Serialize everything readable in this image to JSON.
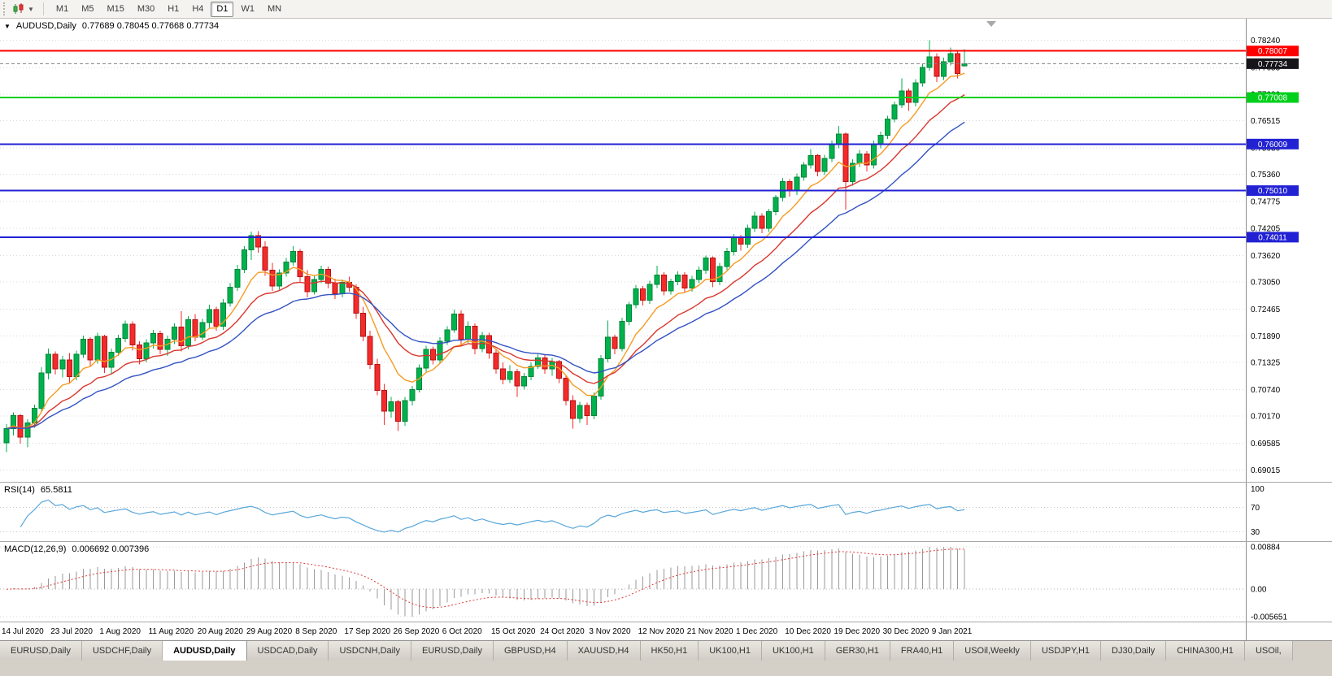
{
  "icons": {
    "dropdown_caret": "▼",
    "symbol_dropdown": "▼",
    "chart_type_icon": "candlestick-chart-icon",
    "shift_marker": "chart-shift-marker-triangle"
  },
  "toolbar": {
    "timeframes": [
      {
        "label": "M1",
        "active": false
      },
      {
        "label": "M5",
        "active": false
      },
      {
        "label": "M15",
        "active": false
      },
      {
        "label": "M30",
        "active": false
      },
      {
        "label": "H1",
        "active": false
      },
      {
        "label": "H4",
        "active": false
      },
      {
        "label": "D1",
        "active": true
      },
      {
        "label": "W1",
        "active": false
      },
      {
        "label": "MN",
        "active": false
      }
    ]
  },
  "chart": {
    "symbol": "AUDUSD,Daily",
    "ohlc_header": "0.77689 0.78045 0.77668 0.77734",
    "price_axis_labels": [
      "0.78240",
      "0.77655",
      "0.77080",
      "0.76515",
      "0.75930",
      "0.75360",
      "0.74775",
      "0.74205",
      "0.73620",
      "0.73050",
      "0.72465",
      "0.71890",
      "0.71325",
      "0.70740",
      "0.70170",
      "0.69585",
      "0.69015"
    ],
    "hlines": [
      {
        "price": 0.78007,
        "label": "0.78007",
        "color": "#ff0000",
        "width": 2
      },
      {
        "price": 0.77008,
        "label": "0.77008",
        "color": "#00d01c",
        "width": 2
      },
      {
        "price": 0.76009,
        "label": "0.76009",
        "color": "#2222d4",
        "width": 2
      },
      {
        "price": 0.7501,
        "label": "0.75010",
        "color": "#2222d4",
        "width": 2
      },
      {
        "price": 0.74011,
        "label": "0.74011",
        "color": "#2222d4",
        "width": 2
      }
    ],
    "current_price": {
      "value": 0.77734,
      "label": "0.77734",
      "badge_color": "#15151a"
    },
    "colors": {
      "background": "#ffffff",
      "grid": "#d8d8d8",
      "axis_line": "#8c8c8c",
      "up": "#00b24c",
      "up_border": "#00843a",
      "down": "#f42b2b",
      "down_border": "#b51212"
    }
  },
  "indicators": {
    "rsi": {
      "name": "RSI(14)",
      "value": "65.5811",
      "axis_labels": [
        "100",
        "70",
        "30"
      ],
      "axis_values": [
        100,
        70,
        30
      ],
      "levels": [
        70,
        30
      ],
      "color": "#58a7da"
    },
    "macd": {
      "name": "MACD(12,26,9)",
      "values": "0.006692 0.007396",
      "axis_labels": [
        "0.00884",
        "0.00",
        "-0.005651"
      ],
      "hist_color": "#9a9a9a",
      "signal_color": "#e03a3a"
    }
  },
  "x_axis": {
    "dates": [
      "14 Jul 2020",
      "23 Jul 2020",
      "1 Aug 2020",
      "11 Aug 2020",
      "20 Aug 2020",
      "29 Aug 2020",
      "8 Sep 2020",
      "17 Sep 2020",
      "26 Sep 2020",
      "6 Oct 2020",
      "15 Oct 2020",
      "24 Oct 2020",
      "3 Nov 2020",
      "12 Nov 2020",
      "21 Nov 2020",
      "1 Dec 2020",
      "10 Dec 2020",
      "19 Dec 2020",
      "30 Dec 2020",
      "9 Jan 2021"
    ]
  },
  "bottom_tabs": [
    {
      "label": "EURUSD,Daily",
      "active": false
    },
    {
      "label": "USDCHF,Daily",
      "active": false
    },
    {
      "label": "AUDUSD,Daily",
      "active": true
    },
    {
      "label": "USDCAD,Daily",
      "active": false
    },
    {
      "label": "USDCNH,Daily",
      "active": false
    },
    {
      "label": "EURUSD,Daily",
      "active": false
    },
    {
      "label": "GBPUSD,H4",
      "active": false
    },
    {
      "label": "XAUUSD,H4",
      "active": false
    },
    {
      "label": "HK50,H1",
      "active": false
    },
    {
      "label": "UK100,H1",
      "active": false
    },
    {
      "label": "UK100,H1",
      "active": false
    },
    {
      "label": "GER30,H1",
      "active": false
    },
    {
      "label": "FRA40,H1",
      "active": false
    },
    {
      "label": "USOil,Weekly",
      "active": false
    },
    {
      "label": "USDJPY,H1",
      "active": false
    },
    {
      "label": "DJ30,Daily",
      "active": false
    },
    {
      "label": "CHINA300,H1",
      "active": false
    },
    {
      "label": "USOil,",
      "active": false
    }
  ],
  "chart_data": {
    "type": "candlestick",
    "title": "AUDUSD Daily with RSI(14) and MACD(12,26,9)",
    "symbol": "AUDUSD",
    "timeframe": "Daily",
    "ohlc_format": [
      "open",
      "high",
      "low",
      "close"
    ],
    "ylim": [
      0.6876,
      0.787
    ],
    "x_labels_every": 7,
    "moving_averages": [
      {
        "period": 8,
        "color": "#f59b22"
      },
      {
        "period": 16,
        "color": "#d9372d"
      },
      {
        "period": 26,
        "color": "#3353c4"
      }
    ],
    "ohlc": [
      [
        0.696,
        0.7,
        0.694,
        0.699
      ],
      [
        0.699,
        0.7025,
        0.6975,
        0.7018
      ],
      [
        0.7018,
        0.7022,
        0.6958,
        0.6972
      ],
      [
        0.6972,
        0.701,
        0.695,
        0.7002
      ],
      [
        0.7002,
        0.7042,
        0.6992,
        0.7034
      ],
      [
        0.7034,
        0.7122,
        0.7028,
        0.711
      ],
      [
        0.711,
        0.7162,
        0.7096,
        0.715
      ],
      [
        0.715,
        0.7156,
        0.7106,
        0.7118
      ],
      [
        0.7118,
        0.7146,
        0.71,
        0.7138
      ],
      [
        0.7138,
        0.7152,
        0.7086,
        0.7102
      ],
      [
        0.7102,
        0.7158,
        0.7094,
        0.715
      ],
      [
        0.715,
        0.719,
        0.7142,
        0.7182
      ],
      [
        0.7182,
        0.7186,
        0.7124,
        0.7138
      ],
      [
        0.7138,
        0.7196,
        0.713,
        0.7188
      ],
      [
        0.7188,
        0.7192,
        0.711,
        0.7122
      ],
      [
        0.7122,
        0.7162,
        0.7106,
        0.7154
      ],
      [
        0.7154,
        0.7192,
        0.7146,
        0.7184
      ],
      [
        0.7184,
        0.7222,
        0.7176,
        0.7214
      ],
      [
        0.7214,
        0.722,
        0.7158,
        0.717
      ],
      [
        0.717,
        0.7178,
        0.7128,
        0.714
      ],
      [
        0.714,
        0.7182,
        0.7132,
        0.7174
      ],
      [
        0.7174,
        0.7202,
        0.7162,
        0.7194
      ],
      [
        0.7194,
        0.72,
        0.715,
        0.716
      ],
      [
        0.716,
        0.719,
        0.7146,
        0.7182
      ],
      [
        0.7182,
        0.7216,
        0.7172,
        0.7208
      ],
      [
        0.7208,
        0.7242,
        0.7156,
        0.7168
      ],
      [
        0.7168,
        0.7232,
        0.716,
        0.7224
      ],
      [
        0.7224,
        0.7236,
        0.7178,
        0.7186
      ],
      [
        0.7186,
        0.7226,
        0.718,
        0.7218
      ],
      [
        0.7218,
        0.7256,
        0.7206,
        0.7246
      ],
      [
        0.7246,
        0.7252,
        0.72,
        0.721
      ],
      [
        0.721,
        0.7268,
        0.7202,
        0.726
      ],
      [
        0.726,
        0.7302,
        0.7252,
        0.7294
      ],
      [
        0.7294,
        0.7342,
        0.7286,
        0.7332
      ],
      [
        0.7332,
        0.7382,
        0.7324,
        0.7374
      ],
      [
        0.7374,
        0.7413,
        0.7352,
        0.7404
      ],
      [
        0.7404,
        0.7414,
        0.7368,
        0.738
      ],
      [
        0.738,
        0.7392,
        0.7318,
        0.733
      ],
      [
        0.733,
        0.7346,
        0.7286,
        0.7296
      ],
      [
        0.7296,
        0.7332,
        0.7288,
        0.7324
      ],
      [
        0.7324,
        0.7356,
        0.7316,
        0.7348
      ],
      [
        0.7348,
        0.7382,
        0.734,
        0.737
      ],
      [
        0.737,
        0.7376,
        0.7306,
        0.7316
      ],
      [
        0.7316,
        0.733,
        0.7272,
        0.7284
      ],
      [
        0.7284,
        0.7318,
        0.7278,
        0.731
      ],
      [
        0.731,
        0.734,
        0.7302,
        0.7332
      ],
      [
        0.7332,
        0.7338,
        0.7292,
        0.7302
      ],
      [
        0.7302,
        0.7312,
        0.7268,
        0.728
      ],
      [
        0.728,
        0.731,
        0.7272,
        0.7304
      ],
      [
        0.7304,
        0.7316,
        0.7284,
        0.7294
      ],
      [
        0.7294,
        0.73,
        0.7226,
        0.7238
      ],
      [
        0.7238,
        0.7252,
        0.7178,
        0.7188
      ],
      [
        0.7188,
        0.72,
        0.7118,
        0.7128
      ],
      [
        0.7128,
        0.714,
        0.7062,
        0.7072
      ],
      [
        0.7072,
        0.7086,
        0.6998,
        0.7028
      ],
      [
        0.7028,
        0.7058,
        0.7014,
        0.7048
      ],
      [
        0.7048,
        0.7052,
        0.6985,
        0.7006
      ],
      [
        0.7006,
        0.7058,
        0.6996,
        0.705
      ],
      [
        0.705,
        0.7082,
        0.704,
        0.7074
      ],
      [
        0.7074,
        0.7128,
        0.7068,
        0.712
      ],
      [
        0.712,
        0.7168,
        0.7112,
        0.716
      ],
      [
        0.716,
        0.7166,
        0.7128,
        0.7138
      ],
      [
        0.7138,
        0.7186,
        0.713,
        0.7178
      ],
      [
        0.7178,
        0.721,
        0.717,
        0.7202
      ],
      [
        0.7202,
        0.7246,
        0.7196,
        0.7236
      ],
      [
        0.7236,
        0.7244,
        0.717,
        0.7182
      ],
      [
        0.7182,
        0.722,
        0.7174,
        0.721
      ],
      [
        0.721,
        0.7216,
        0.715,
        0.7162
      ],
      [
        0.7162,
        0.7198,
        0.7154,
        0.719
      ],
      [
        0.719,
        0.7196,
        0.714,
        0.7152
      ],
      [
        0.7152,
        0.716,
        0.7108,
        0.7118
      ],
      [
        0.7118,
        0.7132,
        0.7085,
        0.7096
      ],
      [
        0.7096,
        0.7126,
        0.7088,
        0.7112
      ],
      [
        0.7112,
        0.7118,
        0.7058,
        0.7082
      ],
      [
        0.7082,
        0.711,
        0.7074,
        0.7102
      ],
      [
        0.7102,
        0.7132,
        0.7094,
        0.7124
      ],
      [
        0.7124,
        0.715,
        0.7118,
        0.7142
      ],
      [
        0.7142,
        0.7148,
        0.7108,
        0.7118
      ],
      [
        0.7118,
        0.7142,
        0.7104,
        0.7134
      ],
      [
        0.7134,
        0.7138,
        0.7088,
        0.7098
      ],
      [
        0.7098,
        0.7104,
        0.704,
        0.705
      ],
      [
        0.705,
        0.7062,
        0.699,
        0.7012
      ],
      [
        0.7012,
        0.7048,
        0.7002,
        0.704
      ],
      [
        0.704,
        0.7046,
        0.6998,
        0.7018
      ],
      [
        0.7018,
        0.7068,
        0.701,
        0.706
      ],
      [
        0.706,
        0.7148,
        0.7052,
        0.714
      ],
      [
        0.714,
        0.7222,
        0.7132,
        0.7186
      ],
      [
        0.7186,
        0.7192,
        0.715,
        0.7162
      ],
      [
        0.7162,
        0.7228,
        0.7156,
        0.722
      ],
      [
        0.722,
        0.7262,
        0.7212,
        0.7256
      ],
      [
        0.7256,
        0.7298,
        0.7248,
        0.729
      ],
      [
        0.729,
        0.7296,
        0.7254,
        0.7266
      ],
      [
        0.7266,
        0.7308,
        0.7258,
        0.73
      ],
      [
        0.73,
        0.734,
        0.7292,
        0.732
      ],
      [
        0.732,
        0.7326,
        0.7276,
        0.7286
      ],
      [
        0.7286,
        0.7312,
        0.7278,
        0.7306
      ],
      [
        0.7306,
        0.7328,
        0.7298,
        0.732
      ],
      [
        0.732,
        0.7326,
        0.7282,
        0.7292
      ],
      [
        0.7292,
        0.7318,
        0.7284,
        0.731
      ],
      [
        0.731,
        0.7338,
        0.7302,
        0.733
      ],
      [
        0.733,
        0.7362,
        0.7322,
        0.7356
      ],
      [
        0.7356,
        0.736,
        0.7294,
        0.7306
      ],
      [
        0.7306,
        0.7346,
        0.7298,
        0.7338
      ],
      [
        0.7338,
        0.7378,
        0.733,
        0.737
      ],
      [
        0.737,
        0.7408,
        0.7362,
        0.74
      ],
      [
        0.74,
        0.7406,
        0.7372,
        0.7386
      ],
      [
        0.7386,
        0.7428,
        0.7378,
        0.742
      ],
      [
        0.742,
        0.7456,
        0.7412,
        0.7446
      ],
      [
        0.7446,
        0.7452,
        0.741,
        0.742
      ],
      [
        0.742,
        0.7462,
        0.7412,
        0.7456
      ],
      [
        0.7456,
        0.7492,
        0.7448,
        0.7486
      ],
      [
        0.7486,
        0.7528,
        0.7478,
        0.752
      ],
      [
        0.752,
        0.7526,
        0.7488,
        0.75
      ],
      [
        0.75,
        0.7538,
        0.7492,
        0.753
      ],
      [
        0.753,
        0.7562,
        0.7522,
        0.7556
      ],
      [
        0.7556,
        0.759,
        0.7548,
        0.7576
      ],
      [
        0.7576,
        0.758,
        0.7532,
        0.7542
      ],
      [
        0.7542,
        0.7578,
        0.7534,
        0.757
      ],
      [
        0.757,
        0.7608,
        0.7562,
        0.76
      ],
      [
        0.76,
        0.764,
        0.7592,
        0.7622
      ],
      [
        0.7622,
        0.7626,
        0.746,
        0.752
      ],
      [
        0.752,
        0.7568,
        0.7512,
        0.756
      ],
      [
        0.756,
        0.7588,
        0.7552,
        0.758
      ],
      [
        0.758,
        0.7586,
        0.7542,
        0.7556
      ],
      [
        0.7556,
        0.7608,
        0.7548,
        0.76
      ],
      [
        0.76,
        0.7628,
        0.7592,
        0.762
      ],
      [
        0.762,
        0.7662,
        0.7612,
        0.7655
      ],
      [
        0.7655,
        0.7692,
        0.7648,
        0.7685
      ],
      [
        0.7685,
        0.7742,
        0.7678,
        0.7715
      ],
      [
        0.7715,
        0.772,
        0.7672,
        0.769
      ],
      [
        0.769,
        0.774,
        0.7682,
        0.7732
      ],
      [
        0.7732,
        0.7772,
        0.7724,
        0.7765
      ],
      [
        0.7765,
        0.7824,
        0.7758,
        0.7788
      ],
      [
        0.7788,
        0.7796,
        0.7734,
        0.7746
      ],
      [
        0.7746,
        0.7786,
        0.7738,
        0.7778
      ],
      [
        0.7778,
        0.7808,
        0.777,
        0.7795
      ],
      [
        0.7795,
        0.78,
        0.7742,
        0.7752
      ],
      [
        0.77689,
        0.78045,
        0.77668,
        0.77734
      ]
    ]
  }
}
